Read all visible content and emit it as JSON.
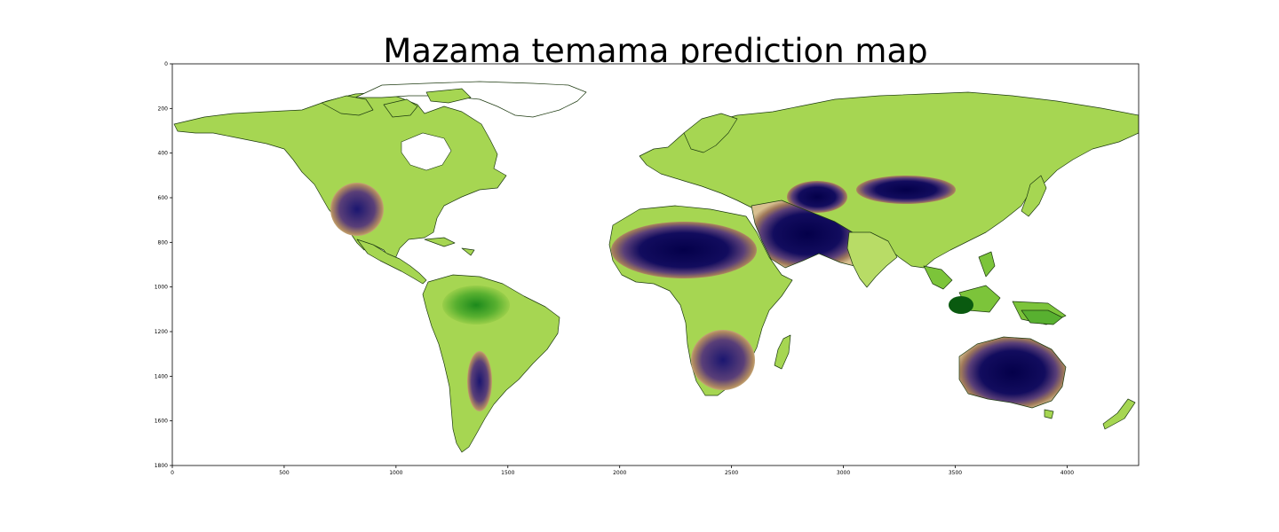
{
  "title": "Mazama temama prediction map",
  "axes": {
    "x_ticks": [
      "0",
      "500",
      "1000",
      "1500",
      "2000",
      "2500",
      "3000",
      "3500",
      "4000"
    ],
    "y_ticks": [
      "0",
      "200",
      "400",
      "600",
      "800",
      "1000",
      "1200",
      "1400",
      "1600",
      "1800"
    ],
    "x_range": [
      0,
      4320
    ],
    "y_range": [
      0,
      1800
    ],
    "y_inverted": true
  },
  "colormap": {
    "name": "gist_earth-like",
    "colors": [
      "#04004a",
      "#1b1670",
      "#6b4e7a",
      "#a07a5a",
      "#d8b888",
      "#e8dca0",
      "#c8e07a",
      "#9acf4a",
      "#58b030",
      "#1c8a1c",
      "#0a5a10"
    ]
  }
}
